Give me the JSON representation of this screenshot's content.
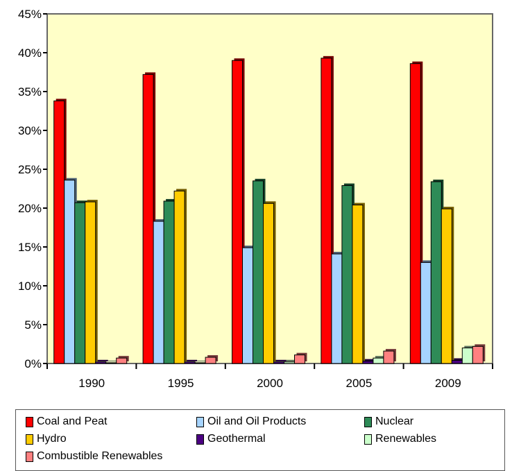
{
  "chart_data": {
    "type": "bar",
    "title": "",
    "xlabel": "",
    "ylabel": "",
    "categories": [
      "1990",
      "1995",
      "2000",
      "2005",
      "2009"
    ],
    "ylim": [
      0,
      45
    ],
    "yticks": [
      "0%",
      "5%",
      "10%",
      "15%",
      "20%",
      "25%",
      "30%",
      "35%",
      "40%",
      "45%"
    ],
    "grid": false,
    "plot_background": "#ffffc8",
    "legend_position": "bottom",
    "series": [
      {
        "name": "Coal and Peat",
        "color": "#ff0000",
        "values": [
          33.8,
          37.2,
          39.0,
          39.3,
          38.6
        ]
      },
      {
        "name": "Oil and Oil Products",
        "color": "#a6d4ff",
        "values": [
          23.6,
          18.3,
          14.9,
          14.1,
          13.0
        ]
      },
      {
        "name": "Nuclear",
        "color": "#2e8b57",
        "values": [
          20.7,
          20.9,
          23.5,
          22.9,
          23.4
        ]
      },
      {
        "name": "Hydro",
        "color": "#ffcc00",
        "values": [
          20.8,
          22.2,
          20.6,
          20.4,
          19.9
        ]
      },
      {
        "name": "Geothermal",
        "color": "#4b0082",
        "values": [
          0.2,
          0.2,
          0.2,
          0.3,
          0.4
        ]
      },
      {
        "name": "Renewables",
        "color": "#ccffcc",
        "values": [
          0.1,
          0.1,
          0.2,
          0.7,
          2.0
        ]
      },
      {
        "name": "Combustible Renewables",
        "color": "#ff8080",
        "values": [
          0.7,
          0.8,
          1.1,
          1.6,
          2.2
        ]
      }
    ]
  }
}
